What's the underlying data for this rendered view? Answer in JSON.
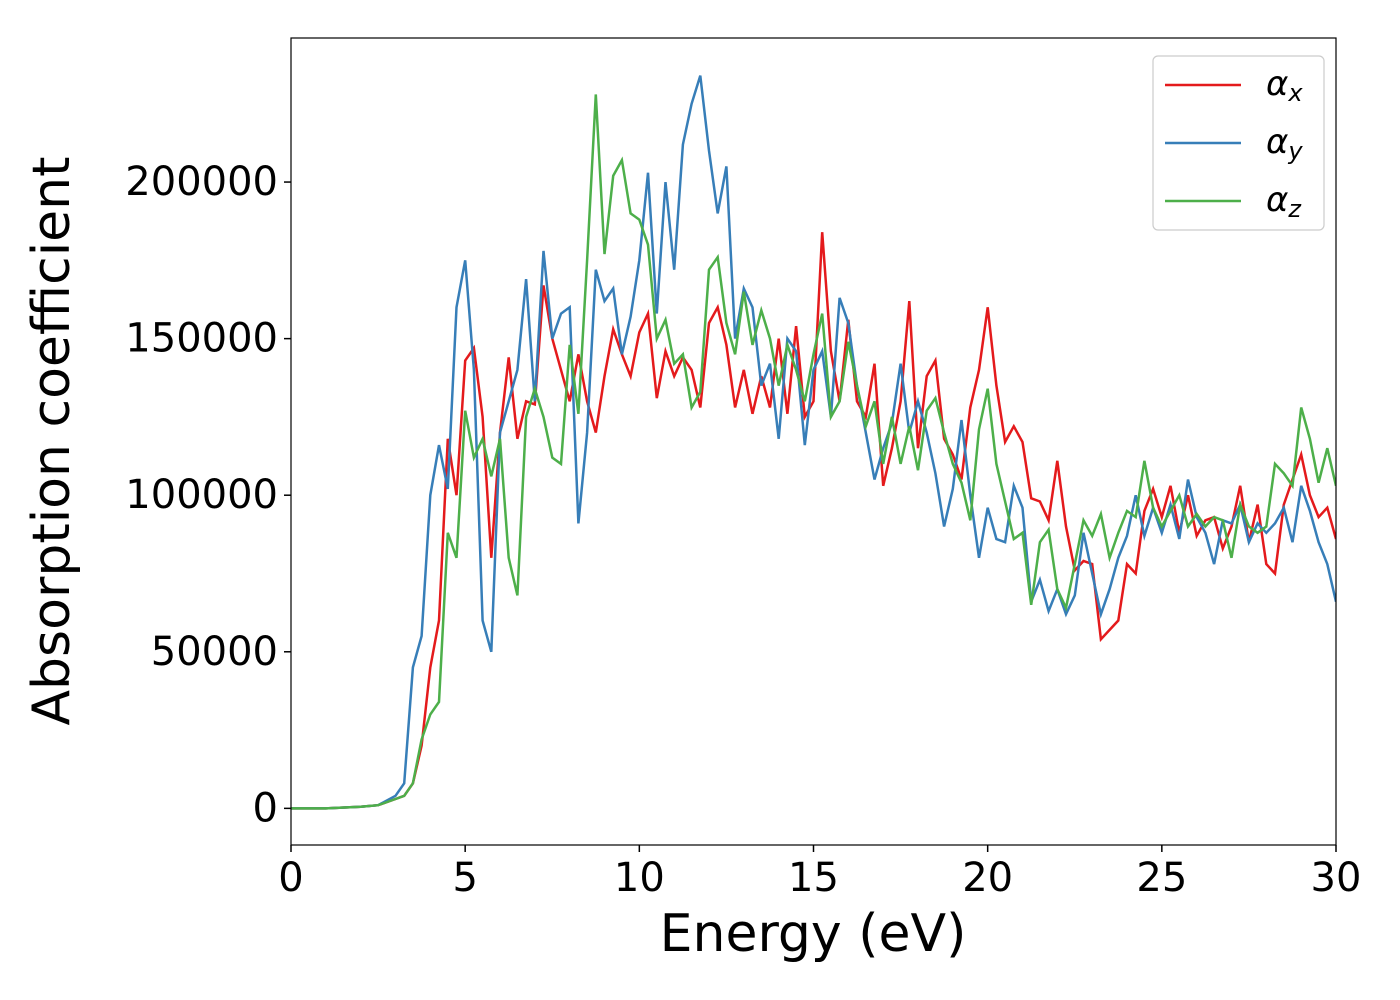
{
  "chart_data": {
    "type": "line",
    "xlabel": "Energy (eV)",
    "ylabel": "Absorption coefficient",
    "x": [
      0,
      1,
      2,
      2.5,
      3,
      3.25,
      3.5,
      3.75,
      4,
      4.25,
      4.5,
      4.75,
      5,
      5.25,
      5.5,
      5.75,
      6,
      6.25,
      6.5,
      6.75,
      7,
      7.25,
      7.5,
      7.75,
      8,
      8.25,
      8.5,
      8.75,
      9,
      9.25,
      9.5,
      9.75,
      10,
      10.25,
      10.5,
      10.75,
      11,
      11.25,
      11.5,
      11.75,
      12,
      12.25,
      12.5,
      12.75,
      13,
      13.25,
      13.5,
      13.75,
      14,
      14.25,
      14.5,
      14.75,
      15,
      15.25,
      15.5,
      15.75,
      16,
      16.25,
      16.5,
      16.75,
      17,
      17.25,
      17.5,
      17.75,
      18,
      18.25,
      18.5,
      18.75,
      19,
      19.25,
      19.5,
      19.75,
      20,
      20.25,
      20.5,
      20.75,
      21,
      21.25,
      21.5,
      21.75,
      22,
      22.25,
      22.5,
      22.75,
      23,
      23.25,
      23.5,
      23.75,
      24,
      24.25,
      24.5,
      24.75,
      25,
      25.25,
      25.5,
      25.75,
      26,
      26.25,
      26.5,
      26.75,
      27,
      27.25,
      27.5,
      27.75,
      28,
      28.25,
      28.5,
      28.75,
      29,
      29.25,
      29.5,
      29.75,
      30
    ],
    "series": [
      {
        "name": "αx",
        "color": "#e41a1c",
        "values": [
          0,
          0,
          500,
          1000,
          3000,
          4000,
          8000,
          20000,
          45000,
          60000,
          118000,
          100000,
          143000,
          147000,
          125000,
          80000,
          120000,
          144000,
          118000,
          130000,
          129000,
          167000,
          150000,
          140000,
          130000,
          145000,
          130000,
          120000,
          138000,
          153000,
          145000,
          138000,
          152000,
          158000,
          131000,
          146000,
          138000,
          144000,
          140000,
          128000,
          155000,
          160000,
          148000,
          128000,
          140000,
          126000,
          138000,
          128000,
          150000,
          126000,
          154000,
          125000,
          130000,
          184000,
          146000,
          130000,
          156000,
          130000,
          125000,
          142000,
          103000,
          115000,
          130000,
          162000,
          115000,
          138000,
          143000,
          118000,
          113000,
          105000,
          128000,
          140000,
          160000,
          135000,
          117000,
          122000,
          117000,
          99000,
          98000,
          92000,
          111000,
          90000,
          76000,
          79000,
          78000,
          54000,
          57000,
          60000,
          78000,
          75000,
          95000,
          102000,
          93000,
          103000,
          88000,
          100000,
          87000,
          92000,
          93000,
          83000,
          90000,
          103000,
          85000,
          97000,
          78000,
          75000,
          97000,
          105000,
          113000,
          100000,
          93000,
          96000,
          86000
        ]
      },
      {
        "name": "αy",
        "color": "#377eb8",
        "values": [
          0,
          0,
          500,
          1000,
          4000,
          8000,
          45000,
          55000,
          100000,
          116000,
          102000,
          160000,
          175000,
          140000,
          60000,
          50000,
          120000,
          130000,
          140000,
          169000,
          130000,
          178000,
          150000,
          158000,
          160000,
          91000,
          120000,
          172000,
          162000,
          166000,
          145000,
          157000,
          175000,
          203000,
          158000,
          200000,
          172000,
          212000,
          225000,
          234000,
          210000,
          190000,
          205000,
          150000,
          166000,
          160000,
          135000,
          142000,
          118000,
          150000,
          146000,
          116000,
          140000,
          146000,
          125000,
          163000,
          155000,
          135000,
          120000,
          105000,
          115000,
          123000,
          142000,
          120000,
          130000,
          120000,
          107000,
          90000,
          102000,
          124000,
          100000,
          80000,
          96000,
          86000,
          85000,
          103000,
          96000,
          66000,
          73000,
          63000,
          70000,
          62000,
          68000,
          88000,
          75000,
          62000,
          70000,
          80000,
          87000,
          100000,
          87000,
          96000,
          88000,
          97000,
          86000,
          105000,
          93000,
          88000,
          78000,
          92000,
          91000,
          97000,
          85000,
          91000,
          88000,
          91000,
          96000,
          85000,
          103000,
          95000,
          85000,
          78000,
          66000
        ]
      },
      {
        "name": "αz",
        "color": "#4daf4a",
        "values": [
          0,
          0,
          500,
          1000,
          3000,
          4000,
          8000,
          22000,
          30000,
          34000,
          88000,
          80000,
          127000,
          112000,
          118000,
          106000,
          118000,
          80000,
          68000,
          125000,
          134000,
          125000,
          112000,
          110000,
          148000,
          126000,
          175000,
          228000,
          177000,
          202000,
          207000,
          190000,
          188000,
          180000,
          150000,
          156000,
          142000,
          145000,
          128000,
          133000,
          172000,
          176000,
          155000,
          145000,
          165000,
          148000,
          159000,
          150000,
          135000,
          148000,
          140000,
          130000,
          145000,
          158000,
          125000,
          130000,
          149000,
          135000,
          122000,
          130000,
          110000,
          125000,
          110000,
          122000,
          108000,
          127000,
          131000,
          120000,
          110000,
          104000,
          92000,
          121000,
          134000,
          110000,
          98000,
          86000,
          88000,
          65000,
          85000,
          89000,
          70000,
          64000,
          78000,
          92000,
          87000,
          94000,
          80000,
          88000,
          95000,
          93000,
          111000,
          96000,
          90000,
          95000,
          100000,
          90000,
          94000,
          90000,
          93000,
          92000,
          80000,
          97000,
          90000,
          88000,
          90000,
          110000,
          107000,
          103000,
          128000,
          118000,
          104000,
          115000,
          103000
        ]
      }
    ],
    "xlim": [
      0,
      30
    ],
    "xticks": [
      0,
      5,
      10,
      15,
      20,
      25,
      30
    ],
    "ylim": [
      -11700,
      246000
    ],
    "yticks": [
      0,
      50000,
      100000,
      150000,
      200000
    ],
    "grid": false,
    "legend": "upper right"
  }
}
